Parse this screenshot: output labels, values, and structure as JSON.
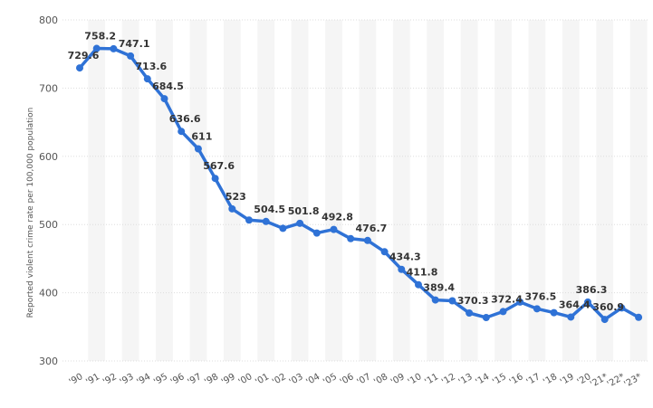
{
  "chart_data": {
    "type": "line",
    "title": "",
    "xlabel": "",
    "ylabel": "Reported violent crime rate per 100,000 population",
    "ylim": [
      300,
      800
    ],
    "yticks": [
      "300",
      "400",
      "500",
      "600",
      "700",
      "800"
    ],
    "grid": true,
    "accent_color": "#2f72d6",
    "categories": [
      "'90",
      "'91",
      "'92",
      "'93",
      "'94",
      "'95",
      "'96",
      "'97",
      "'98",
      "'99",
      "'00",
      "'01",
      "'02",
      "'03",
      "'04",
      "'05",
      "'06",
      "'07",
      "'08",
      "'09",
      "'10",
      "'11",
      "'12",
      "'13",
      "'14",
      "'15",
      "'16",
      "'17",
      "'18",
      "'19",
      "'20",
      "'21*",
      "'22*",
      "'23*"
    ],
    "values": [
      729.6,
      758.2,
      757.7,
      747.1,
      713.6,
      684.5,
      636.6,
      611,
      567.6,
      523,
      506.5,
      504.5,
      494.4,
      501.8,
      487.5,
      492.8,
      479.3,
      476.7,
      460.1,
      434.3,
      411.8,
      389.4,
      388.2,
      370.3,
      363.6,
      372.4,
      386.3,
      376.5,
      370.8,
      364.4,
      386.3,
      360.9,
      377.7,
      364
    ],
    "labels": [
      "729.6",
      "758.2",
      "",
      "747.1",
      "713.6",
      "684.5",
      "636.6",
      "611",
      "567.6",
      "523",
      "",
      "504.5",
      "",
      "501.8",
      "",
      "492.8",
      "",
      "476.7",
      "",
      "434.3",
      "411.8",
      "389.4",
      "",
      "370.3",
      "",
      "372.4",
      "",
      "376.5",
      "",
      "364.4",
      "386.3",
      "360.9",
      "",
      ""
    ]
  }
}
